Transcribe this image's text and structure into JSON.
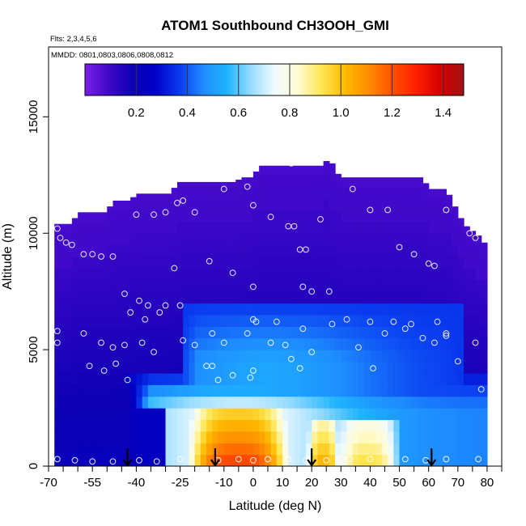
{
  "chart_data": {
    "type": "heatmap",
    "title": "ATOM1 Southbound CH3OOH_GMI",
    "flights_label": "Flts: 2,3,4,5,6",
    "dates_label": "MMDD: 0801,0803,0806,0808,0812",
    "xlabel": "Latitude (deg N)",
    "ylabel": "Altitude (m)",
    "xlim": [
      -70,
      85
    ],
    "ylim": [
      0,
      18000
    ],
    "xticks": [
      -70,
      -55,
      -40,
      -25,
      -10,
      0,
      10,
      20,
      30,
      40,
      50,
      60,
      70,
      80
    ],
    "xtick_labels": [
      "-70",
      "-55",
      "-40",
      "-25",
      "-10",
      "0",
      "10",
      "20",
      "30",
      "40",
      "50",
      "60",
      "70",
      "80"
    ],
    "xticks_minor": [
      -65,
      -60,
      -50,
      -45,
      -35,
      -30,
      -20,
      -15,
      -5,
      5,
      15,
      25,
      35,
      45,
      55,
      65,
      75,
      85
    ],
    "yticks": [
      0,
      5000,
      10000,
      15000
    ],
    "ytick_labels": [
      "0",
      "5000",
      "10000",
      "15000"
    ],
    "colorbar": {
      "min": 0.0,
      "max": 1.48,
      "ticks": [
        0.2,
        0.4,
        0.6,
        0.8,
        1.0,
        1.2,
        1.4
      ],
      "tick_labels": [
        "0.2",
        "0.4",
        "0.6",
        "0.8",
        "1.0",
        "1.2",
        "1.4"
      ],
      "colors": [
        "#7b1fe8",
        "#3f08c8",
        "#0d00b4",
        "#0000c8",
        "#0a3cf0",
        "#1e8cff",
        "#1eb4ff",
        "#96dcff",
        "#f0faff",
        "#fffbd2",
        "#ffe650",
        "#ffb900",
        "#ff8c00",
        "#ff5000",
        "#ff1e00",
        "#d70000",
        "#a01414"
      ]
    },
    "grid": {
      "lat_min": -68,
      "lat_max": 80,
      "lat_step": 2,
      "alt_min": 0,
      "alt_step": 500,
      "top_profile": [
        [
          -68,
          10400
        ],
        [
          -62,
          10400
        ],
        [
          -60,
          10900
        ],
        [
          -50,
          10900
        ],
        [
          -48,
          11400
        ],
        [
          -42,
          11400
        ],
        [
          -40,
          11700
        ],
        [
          -28,
          11700
        ],
        [
          -26,
          12200
        ],
        [
          -6,
          12200
        ],
        [
          -4,
          12400
        ],
        [
          0,
          12400
        ],
        [
          2,
          12900
        ],
        [
          24,
          12900
        ],
        [
          26,
          13300
        ],
        [
          28,
          12700
        ],
        [
          30,
          12400
        ],
        [
          58,
          12400
        ],
        [
          60,
          11900
        ],
        [
          66,
          11900
        ],
        [
          68,
          11400
        ],
        [
          72,
          10400
        ],
        [
          78,
          9800
        ],
        [
          80,
          9400
        ]
      ],
      "high_values": [
        {
          "lat_min": -22,
          "lat_max": 12,
          "alt_min": 0,
          "alt_max": 2500,
          "value": 1.25
        },
        {
          "lat_min": 20,
          "lat_max": 28,
          "alt_min": 0,
          "alt_max": 2000,
          "value": 1.05
        },
        {
          "lat_min": 30,
          "lat_max": 48,
          "alt_min": 0,
          "alt_max": 2000,
          "value": 0.95
        }
      ]
    },
    "sample_points": [
      [
        -67,
        300
      ],
      [
        -61,
        250
      ],
      [
        -55,
        200
      ],
      [
        -48,
        200
      ],
      [
        -39,
        250
      ],
      [
        -33,
        200
      ],
      [
        -25,
        300
      ],
      [
        -12,
        250
      ],
      [
        -5,
        300
      ],
      [
        0,
        250
      ],
      [
        5,
        300
      ],
      [
        12,
        300
      ],
      [
        18,
        250
      ],
      [
        25,
        250
      ],
      [
        33,
        300
      ],
      [
        40,
        300
      ],
      [
        46,
        700
      ],
      [
        52,
        300
      ],
      [
        59,
        250
      ],
      [
        66,
        300
      ],
      [
        77,
        300
      ],
      [
        -67,
        5800
      ],
      [
        -67,
        5300
      ],
      [
        -58,
        5700
      ],
      [
        -56,
        4300
      ],
      [
        -52,
        5300
      ],
      [
        -51,
        4100
      ],
      [
        -48,
        5100
      ],
      [
        -47,
        4400
      ],
      [
        -43,
        3700
      ],
      [
        -44,
        5200
      ],
      [
        -38,
        5300
      ],
      [
        -37,
        6300
      ],
      [
        -34,
        4900
      ],
      [
        -32,
        6600
      ],
      [
        -30,
        6900
      ],
      [
        -25,
        6900
      ],
      [
        -24,
        5400
      ],
      [
        -20,
        5200
      ],
      [
        -16,
        4300
      ],
      [
        -14,
        5700
      ],
      [
        -10,
        5300
      ],
      [
        -7,
        3900
      ],
      [
        -2,
        5700
      ],
      [
        0,
        6300
      ],
      [
        0,
        4100
      ],
      [
        -1,
        3800
      ],
      [
        1,
        6200
      ],
      [
        6,
        5300
      ],
      [
        8,
        6200
      ],
      [
        11,
        5200
      ],
      [
        13,
        4600
      ],
      [
        16,
        4200
      ],
      [
        17,
        5900
      ],
      [
        20,
        4900
      ],
      [
        27,
        6100
      ],
      [
        32,
        6300
      ],
      [
        36,
        5100
      ],
      [
        40,
        6200
      ],
      [
        41,
        4200
      ],
      [
        45,
        5700
      ],
      [
        48,
        6200
      ],
      [
        52,
        5900
      ],
      [
        54,
        6100
      ],
      [
        58,
        5500
      ],
      [
        62,
        5300
      ],
      [
        63,
        6200
      ],
      [
        66,
        5700
      ],
      [
        70,
        4500
      ],
      [
        76,
        5300
      ],
      [
        78,
        3300
      ],
      [
        -67,
        10200
      ],
      [
        -66,
        9800
      ],
      [
        -64,
        9600
      ],
      [
        -62,
        9500
      ],
      [
        -58,
        9100
      ],
      [
        -55,
        9100
      ],
      [
        -52,
        9000
      ],
      [
        -48,
        9000
      ],
      [
        -44,
        7400
      ],
      [
        -42,
        6600
      ],
      [
        -39,
        7100
      ],
      [
        -36,
        6900
      ],
      [
        -34,
        10800
      ],
      [
        -30,
        10900
      ],
      [
        -26,
        11300
      ],
      [
        -24,
        11400
      ],
      [
        -20,
        10900
      ],
      [
        -15,
        8800
      ],
      [
        -10,
        11900
      ],
      [
        -7,
        8300
      ],
      [
        -2,
        12000
      ],
      [
        0,
        7700
      ],
      [
        0,
        11200
      ],
      [
        6,
        10700
      ],
      [
        12,
        10300
      ],
      [
        14,
        10300
      ],
      [
        16,
        9300
      ],
      [
        17,
        7700
      ],
      [
        18,
        9300
      ],
      [
        20,
        7500
      ],
      [
        23,
        10600
      ],
      [
        26,
        7500
      ],
      [
        34,
        11900
      ],
      [
        40,
        11000
      ],
      [
        46,
        11000
      ],
      [
        50,
        9400
      ],
      [
        55,
        9100
      ],
      [
        60,
        8700
      ],
      [
        62,
        8600
      ],
      [
        66,
        11000
      ],
      [
        74,
        10000
      ],
      [
        76,
        9800
      ],
      [
        -46,
        11600
      ],
      [
        -40,
        10800
      ],
      [
        13,
        13000
      ],
      [
        -27,
        8500
      ],
      [
        66,
        5600
      ],
      [
        -14,
        4300
      ],
      [
        -12,
        3700
      ]
    ],
    "arrows": [
      -43,
      -13,
      20,
      61
    ]
  }
}
